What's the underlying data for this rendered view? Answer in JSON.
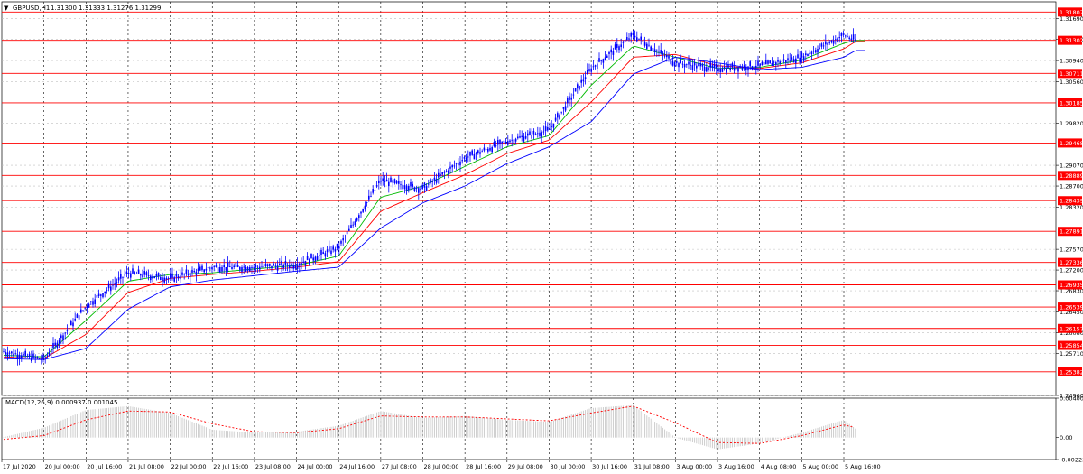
{
  "header": {
    "menu_glyph": "▼",
    "title": "GBPUSD,H1",
    "ohlc": "1.31300 1.31333 1.31276 1.31299"
  },
  "macd": {
    "label": "MACD(12,26,9) 0.000937 0.001045",
    "axis": [
      "0.004005",
      "0.00",
      "-0.002230"
    ],
    "range": [
      -0.00223,
      0.004005
    ],
    "signal_color": "#ff0000",
    "hist_color": "#c8c8c8"
  },
  "colors": {
    "background": "#ffffff",
    "grid": "#c0c0c0",
    "candle": "#0000ff",
    "level_line": "#ff0000",
    "level_box": "#ff0000",
    "ma_fast": "#00bb00",
    "ma_mid": "#ff0000",
    "ma_slow": "#0000ff"
  },
  "chart_data": {
    "type": "line",
    "title": "GBPUSD,H1",
    "timeframe": "H1",
    "price_range": [
      1.2496,
      1.3199
    ],
    "y_ticks": [
      "1.31690",
      "1.31320",
      "1.30940",
      "1.30560",
      "1.29820",
      "1.29070",
      "1.28700",
      "1.28320",
      "1.27570",
      "1.27200",
      "1.26830",
      "1.26450",
      "1.26080",
      "1.25710",
      "1.24960"
    ],
    "x_ticks": [
      "17 Jul 2020",
      "20 Jul 00:00",
      "20 Jul 16:00",
      "21 Jul 08:00",
      "22 Jul 00:00",
      "22 Jul 16:00",
      "23 Jul 08:00",
      "24 Jul 00:00",
      "24 Jul 16:00",
      "27 Jul 08:00",
      "28 Jul 00:00",
      "28 Jul 16:00",
      "29 Jul 08:00",
      "30 Jul 00:00",
      "30 Jul 16:00",
      "31 Jul 08:00",
      "3 Aug 00:00",
      "3 Aug 16:00",
      "4 Aug 08:00",
      "5 Aug 00:00",
      "5 Aug 16:00"
    ],
    "levels": [
      "1.31807",
      "1.31302",
      "1.30711",
      "1.30185",
      "1.29468",
      "1.28889",
      "1.28439",
      "1.27891",
      "1.27336",
      "1.26935",
      "1.26539",
      "1.26157",
      "1.25854",
      "1.25382"
    ],
    "series": [
      {
        "kind": "price",
        "x": [
          "17 Jul 2020",
          "20 Jul 00:00",
          "20 Jul 16:00",
          "21 Jul 08:00",
          "22 Jul 00:00",
          "22 Jul 16:00",
          "23 Jul 08:00",
          "24 Jul 00:00",
          "24 Jul 16:00",
          "27 Jul 08:00",
          "28 Jul 00:00",
          "28 Jul 16:00",
          "29 Jul 08:00",
          "30 Jul 00:00",
          "30 Jul 16:00",
          "31 Jul 08:00",
          "3 Aug 00:00",
          "3 Aug 16:00",
          "4 Aug 08:00",
          "5 Aug 00:00",
          "5 Aug 16:00",
          "5 Aug 22:00"
        ],
        "values": [
          1.2575,
          1.256,
          1.2655,
          1.2715,
          1.2705,
          1.2725,
          1.2725,
          1.273,
          1.276,
          1.288,
          1.2865,
          1.292,
          1.295,
          1.297,
          1.308,
          1.314,
          1.309,
          1.308,
          1.3085,
          1.31,
          1.314,
          1.313
        ]
      },
      {
        "kind": "moving-average-fast",
        "values": [
          1.2568,
          1.2565,
          1.263,
          1.27,
          1.2712,
          1.2715,
          1.2722,
          1.2728,
          1.2745,
          1.285,
          1.287,
          1.2905,
          1.294,
          1.296,
          1.305,
          1.312,
          1.31,
          1.308,
          1.3082,
          1.3095,
          1.3125,
          1.313
        ]
      },
      {
        "kind": "moving-average-mid",
        "values": [
          1.2565,
          1.2562,
          1.2605,
          1.268,
          1.2705,
          1.2712,
          1.2718,
          1.2725,
          1.2735,
          1.2825,
          1.2858,
          1.289,
          1.2928,
          1.2952,
          1.302,
          1.31,
          1.3105,
          1.3085,
          1.308,
          1.309,
          1.3115,
          1.3128
        ]
      },
      {
        "kind": "moving-average-slow",
        "values": [
          1.2562,
          1.256,
          1.258,
          1.265,
          1.269,
          1.2702,
          1.271,
          1.2718,
          1.2725,
          1.2795,
          1.284,
          1.287,
          1.291,
          1.294,
          1.2985,
          1.307,
          1.31,
          1.309,
          1.3078,
          1.3082,
          1.31,
          1.3112
        ]
      }
    ],
    "macd_histogram": [
      0.0,
      0.001,
      0.0028,
      0.0032,
      0.0025,
      0.0008,
      0.0005,
      0.0006,
      0.0012,
      0.0027,
      0.002,
      0.0022,
      0.0018,
      0.0016,
      0.003,
      0.0033,
      0.0,
      -0.0012,
      -0.0006,
      0.0005,
      0.0018,
      0.0009
    ],
    "macd_signal": [
      -0.0002,
      0.0002,
      0.0018,
      0.0027,
      0.0026,
      0.0014,
      0.0006,
      0.0005,
      0.0009,
      0.0022,
      0.0021,
      0.0021,
      0.0019,
      0.0017,
      0.0025,
      0.0032,
      0.0015,
      -0.0005,
      -0.0006,
      0.0002,
      0.0013,
      0.001
    ]
  }
}
